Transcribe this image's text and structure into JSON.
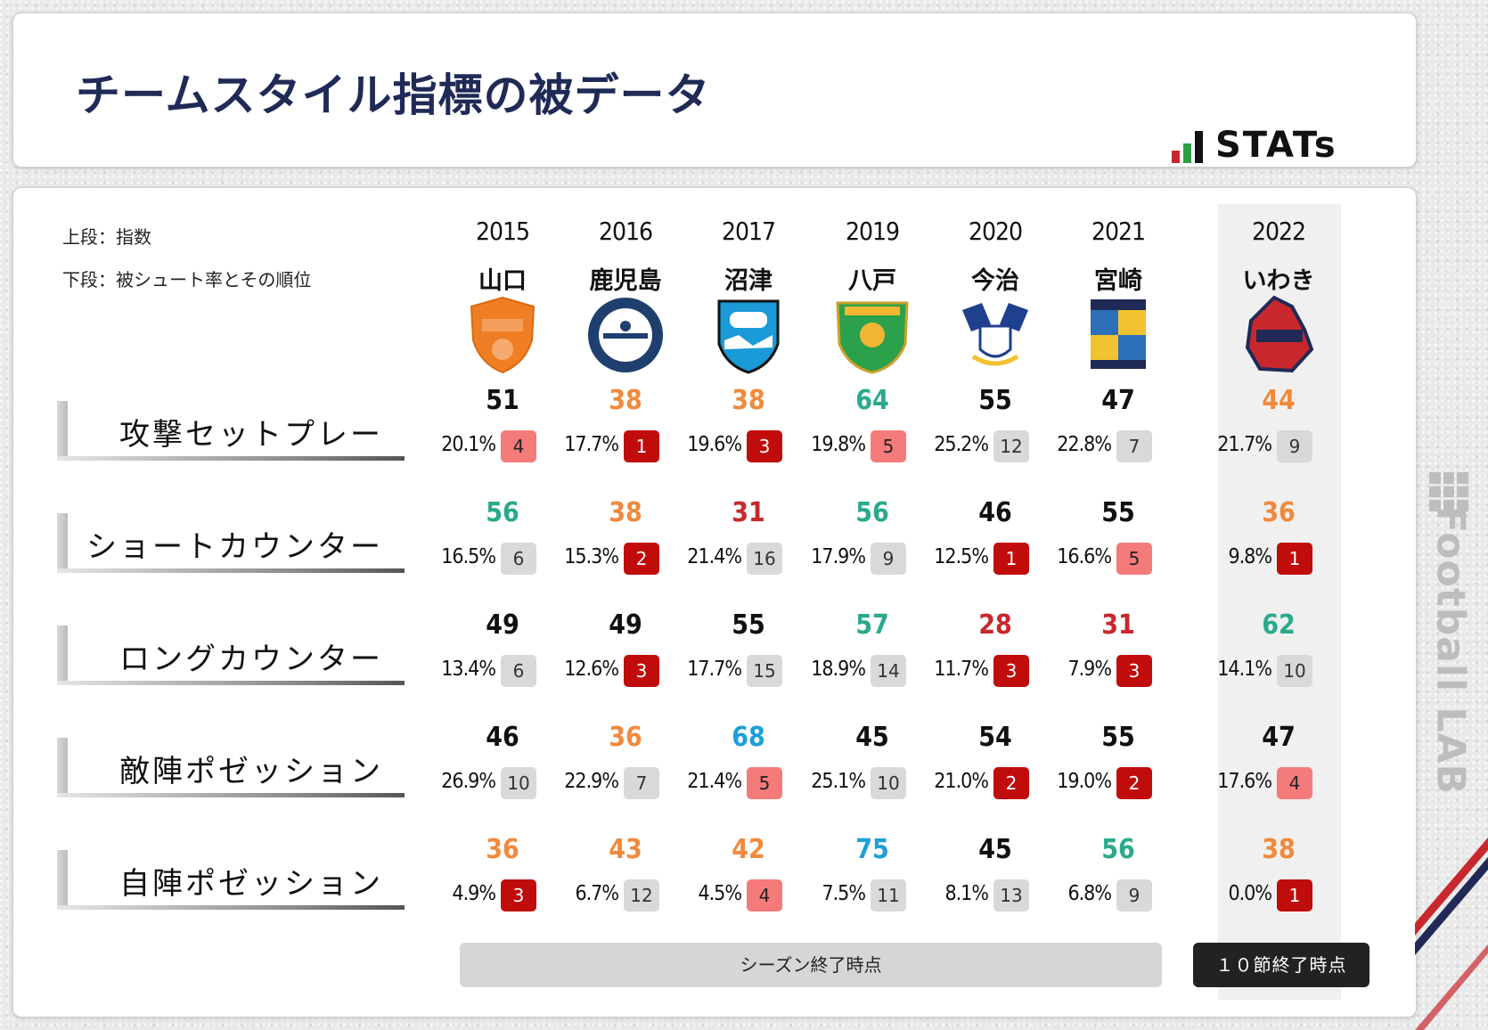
{
  "title": "チームスタイル指標の被データ",
  "brand": {
    "stats": "STATs",
    "football_lab": "Football LAB"
  },
  "legend": {
    "line1": "上段：指数",
    "line2": "下段：被シュート率とその順位"
  },
  "footer": {
    "season_end": "シーズン終了時点",
    "matchday_end": "１０節終了時点"
  },
  "colors": {
    "black": "#111111",
    "orange": "#f08a3c",
    "teal": "#2ba98c",
    "red": "#c8282d",
    "blue": "#1e9fd6",
    "rank_dark": "#c10c0c",
    "rank_light": "#f57b7b",
    "rank_gray": "#d9d9d9"
  },
  "chart_data": {
    "type": "table",
    "columns": [
      {
        "year": "2015",
        "team": "山口",
        "crest": "renofa-yamaguchi-crest"
      },
      {
        "year": "2016",
        "team": "鹿児島",
        "crest": "kagoshima-united-crest"
      },
      {
        "year": "2017",
        "team": "沼津",
        "crest": "azul-claro-numazu-crest"
      },
      {
        "year": "2019",
        "team": "八戸",
        "crest": "vanraure-hachinohe-crest"
      },
      {
        "year": "2020",
        "team": "今治",
        "crest": "fc-imabari-crest"
      },
      {
        "year": "2021",
        "team": "宮崎",
        "crest": "tegevajaro-miyazaki-crest"
      },
      {
        "year": "2022",
        "team": "いわき",
        "crest": "iwaki-fc-crest"
      }
    ],
    "rows": [
      {
        "label": "攻撃セットプレー",
        "cells": [
          {
            "index": 51,
            "rate": "20.1%",
            "rank": 4,
            "index_color": "black",
            "rank_style": "light"
          },
          {
            "index": 38,
            "rate": "17.7%",
            "rank": 1,
            "index_color": "orange",
            "rank_style": "dark"
          },
          {
            "index": 38,
            "rate": "19.6%",
            "rank": 3,
            "index_color": "orange",
            "rank_style": "dark"
          },
          {
            "index": 64,
            "rate": "19.8%",
            "rank": 5,
            "index_color": "teal",
            "rank_style": "light"
          },
          {
            "index": 55,
            "rate": "25.2%",
            "rank": 12,
            "index_color": "black",
            "rank_style": "gray"
          },
          {
            "index": 47,
            "rate": "22.8%",
            "rank": 7,
            "index_color": "black",
            "rank_style": "gray"
          },
          {
            "index": 44,
            "rate": "21.7%",
            "rank": 9,
            "index_color": "orange",
            "rank_style": "gray"
          }
        ]
      },
      {
        "label": "ショートカウンター",
        "cells": [
          {
            "index": 56,
            "rate": "16.5%",
            "rank": 6,
            "index_color": "teal",
            "rank_style": "gray"
          },
          {
            "index": 38,
            "rate": "15.3%",
            "rank": 2,
            "index_color": "orange",
            "rank_style": "dark"
          },
          {
            "index": 31,
            "rate": "21.4%",
            "rank": 16,
            "index_color": "red",
            "rank_style": "gray"
          },
          {
            "index": 56,
            "rate": "17.9%",
            "rank": 9,
            "index_color": "teal",
            "rank_style": "gray"
          },
          {
            "index": 46,
            "rate": "12.5%",
            "rank": 1,
            "index_color": "black",
            "rank_style": "dark"
          },
          {
            "index": 55,
            "rate": "16.6%",
            "rank": 5,
            "index_color": "black",
            "rank_style": "light"
          },
          {
            "index": 36,
            "rate": "9.8%",
            "rank": 1,
            "index_color": "orange",
            "rank_style": "dark"
          }
        ]
      },
      {
        "label": "ロングカウンター",
        "cells": [
          {
            "index": 49,
            "rate": "13.4%",
            "rank": 6,
            "index_color": "black",
            "rank_style": "gray"
          },
          {
            "index": 49,
            "rate": "12.6%",
            "rank": 3,
            "index_color": "black",
            "rank_style": "dark"
          },
          {
            "index": 55,
            "rate": "17.7%",
            "rank": 15,
            "index_color": "black",
            "rank_style": "gray"
          },
          {
            "index": 57,
            "rate": "18.9%",
            "rank": 14,
            "index_color": "teal",
            "rank_style": "gray"
          },
          {
            "index": 28,
            "rate": "11.7%",
            "rank": 3,
            "index_color": "red",
            "rank_style": "dark"
          },
          {
            "index": 31,
            "rate": "7.9%",
            "rank": 3,
            "index_color": "red",
            "rank_style": "dark"
          },
          {
            "index": 62,
            "rate": "14.1%",
            "rank": 10,
            "index_color": "teal",
            "rank_style": "gray"
          }
        ]
      },
      {
        "label": "敵陣ポゼッション",
        "cells": [
          {
            "index": 46,
            "rate": "26.9%",
            "rank": 10,
            "index_color": "black",
            "rank_style": "gray"
          },
          {
            "index": 36,
            "rate": "22.9%",
            "rank": 7,
            "index_color": "orange",
            "rank_style": "gray"
          },
          {
            "index": 68,
            "rate": "21.4%",
            "rank": 5,
            "index_color": "blue",
            "rank_style": "light"
          },
          {
            "index": 45,
            "rate": "25.1%",
            "rank": 10,
            "index_color": "black",
            "rank_style": "gray"
          },
          {
            "index": 54,
            "rate": "21.0%",
            "rank": 2,
            "index_color": "black",
            "rank_style": "dark"
          },
          {
            "index": 55,
            "rate": "19.0%",
            "rank": 2,
            "index_color": "black",
            "rank_style": "dark"
          },
          {
            "index": 47,
            "rate": "17.6%",
            "rank": 4,
            "index_color": "black",
            "rank_style": "light"
          }
        ]
      },
      {
        "label": "自陣ポゼッション",
        "cells": [
          {
            "index": 36,
            "rate": "4.9%",
            "rank": 3,
            "index_color": "orange",
            "rank_style": "dark"
          },
          {
            "index": 43,
            "rate": "6.7%",
            "rank": 12,
            "index_color": "orange",
            "rank_style": "gray"
          },
          {
            "index": 42,
            "rate": "4.5%",
            "rank": 4,
            "index_color": "orange",
            "rank_style": "light"
          },
          {
            "index": 75,
            "rate": "7.5%",
            "rank": 11,
            "index_color": "blue",
            "rank_style": "gray"
          },
          {
            "index": 45,
            "rate": "8.1%",
            "rank": 13,
            "index_color": "black",
            "rank_style": "gray"
          },
          {
            "index": 56,
            "rate": "6.8%",
            "rank": 9,
            "index_color": "teal",
            "rank_style": "gray"
          },
          {
            "index": 38,
            "rate": "0.0%",
            "rank": 1,
            "index_color": "orange",
            "rank_style": "dark"
          }
        ]
      }
    ]
  }
}
